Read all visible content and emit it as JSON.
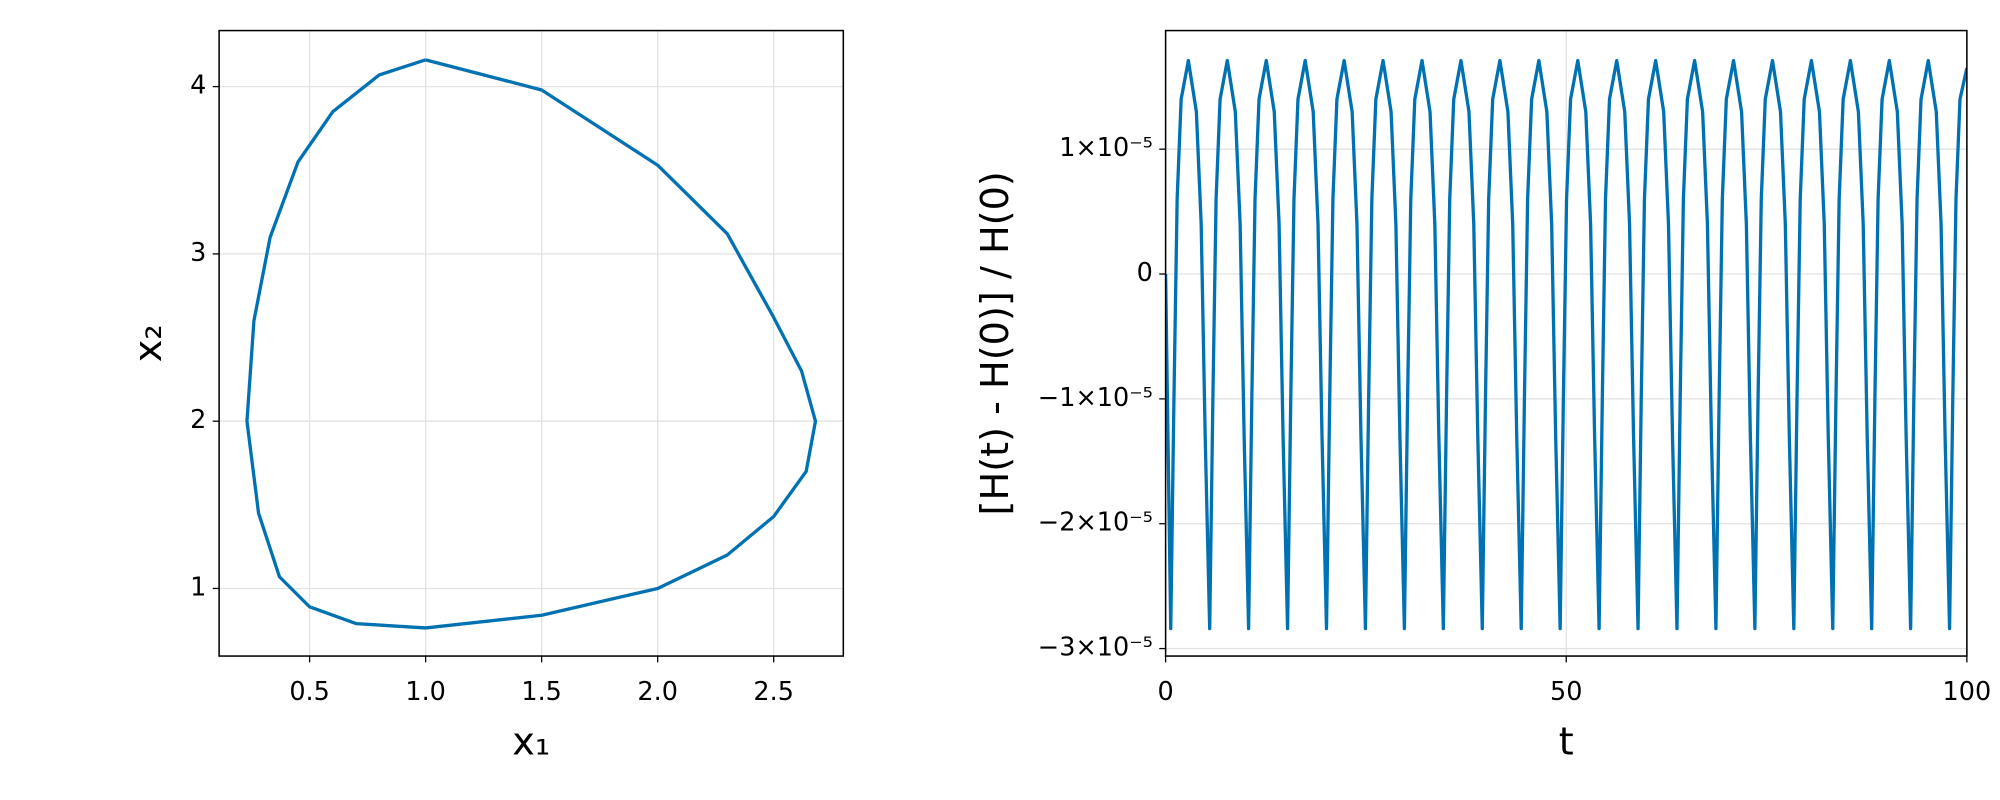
{
  "chart_data": [
    {
      "type": "line",
      "xlabel": "x₁",
      "ylabel": "x₂",
      "color": "#0072b2",
      "grid": true,
      "xlim": [
        0.11,
        2.8
      ],
      "ylim": [
        0.596,
        4.335
      ],
      "xticks": [
        0.5,
        {
          "value": 1,
          "label": "1.0"
        },
        1.5,
        {
          "value": 2,
          "label": "2.0"
        },
        2.5
      ],
      "yticks": [
        1,
        2,
        3,
        4
      ],
      "x": [
        1.0,
        1.5,
        2.0,
        2.3,
        2.5,
        2.62,
        2.68,
        2.64,
        2.5,
        2.3,
        2.0,
        1.5,
        1.0,
        0.7,
        0.5,
        0.37,
        0.28,
        0.23,
        0.26,
        0.33,
        0.45,
        0.6,
        0.8,
        1.0
      ],
      "values": [
        4.16,
        3.98,
        3.53,
        3.12,
        2.62,
        2.3,
        2.0,
        1.7,
        1.43,
        1.2,
        1.0,
        0.84,
        0.764,
        0.79,
        0.89,
        1.07,
        1.45,
        2.0,
        2.6,
        3.1,
        3.55,
        3.85,
        4.07,
        4.16
      ]
    },
    {
      "type": "line",
      "xlabel": "t",
      "ylabel": "[H(t) - H(0)] / H(0)",
      "color": "#0072b2",
      "grid": true,
      "xlim": [
        0,
        100
      ],
      "ylim": [
        -3.06e-05,
        1.95e-05
      ],
      "xticks": [
        0,
        50,
        100
      ],
      "yticks": [
        {
          "value": 1e-05,
          "label": "1×10⁻⁵"
        },
        0,
        {
          "value": -1e-05,
          "label": "−1×10⁻⁵"
        },
        {
          "value": -2e-05,
          "label": "−2×10⁻⁵"
        },
        {
          "value": -3e-05,
          "label": "−3×10⁻⁵"
        }
      ],
      "x": [
        0,
        0.64,
        1.04,
        1.44,
        1.94,
        2.84,
        3.84,
        4.44,
        4.94,
        5.5,
        5.9,
        6.3,
        6.8,
        7.7,
        8.7,
        9.3,
        9.8,
        10.36,
        10.76,
        11.16,
        11.66,
        12.56,
        13.56,
        14.16,
        14.66,
        15.22,
        15.62,
        16.02,
        16.52,
        17.42,
        18.42,
        19.02,
        19.52,
        20.08,
        20.48,
        20.88,
        21.38,
        22.28,
        23.28,
        23.88,
        24.38,
        24.94,
        25.34,
        25.74,
        26.24,
        27.14,
        28.14,
        28.74,
        29.24,
        29.8,
        30.2,
        30.6,
        31.1,
        32,
        33,
        33.6,
        34.1,
        34.66,
        35.06,
        35.46,
        35.96,
        36.86,
        37.86,
        38.46,
        38.96,
        39.52,
        39.92,
        40.32,
        40.82,
        41.72,
        42.72,
        43.32,
        43.82,
        44.38,
        44.78,
        45.18,
        45.68,
        46.58,
        47.58,
        48.18,
        48.68,
        49.24,
        49.64,
        50.04,
        50.54,
        51.44,
        52.44,
        53.04,
        53.54,
        54.1,
        54.5,
        54.9,
        55.4,
        56.3,
        57.3,
        57.9,
        58.4,
        58.96,
        59.36,
        59.76,
        60.26,
        61.16,
        62.16,
        62.76,
        63.26,
        63.82,
        64.22,
        64.62,
        65.12,
        66.02,
        67.02,
        67.62,
        68.12,
        68.68,
        69.08,
        69.48,
        69.98,
        70.88,
        71.88,
        72.48,
        72.98,
        73.54,
        73.94,
        74.34,
        74.84,
        75.74,
        76.74,
        77.34,
        77.84,
        78.4,
        78.8,
        79.2,
        79.7,
        80.6,
        81.6,
        82.2,
        82.7,
        83.26,
        83.66,
        84.06,
        84.56,
        85.46,
        86.46,
        87.06,
        87.56,
        88.12,
        88.52,
        88.92,
        89.42,
        90.32,
        91.32,
        91.92,
        92.42,
        92.98,
        93.38,
        93.78,
        94.28,
        95.18,
        96.18,
        96.78,
        97.28,
        97.84,
        98.24,
        98.64,
        99.14,
        100
      ],
      "values": [
        0,
        -2.84e-05,
        -1e-05,
        6e-06,
        1.4e-05,
        1.71e-05,
        1.3e-05,
        4e-06,
        -1.3e-05,
        -2.84e-05,
        -1e-05,
        6e-06,
        1.4e-05,
        1.71e-05,
        1.3e-05,
        4e-06,
        -1.3e-05,
        -2.84e-05,
        -1e-05,
        6e-06,
        1.4e-05,
        1.71e-05,
        1.3e-05,
        4e-06,
        -1.3e-05,
        -2.84e-05,
        -1e-05,
        6e-06,
        1.4e-05,
        1.71e-05,
        1.3e-05,
        4e-06,
        -1.3e-05,
        -2.84e-05,
        -1e-05,
        6e-06,
        1.4e-05,
        1.71e-05,
        1.3e-05,
        4e-06,
        -1.3e-05,
        -2.84e-05,
        -1e-05,
        6e-06,
        1.4e-05,
        1.71e-05,
        1.3e-05,
        4e-06,
        -1.3e-05,
        -2.84e-05,
        -1e-05,
        6e-06,
        1.4e-05,
        1.71e-05,
        1.3e-05,
        4e-06,
        -1.3e-05,
        -2.84e-05,
        -1e-05,
        6e-06,
        1.4e-05,
        1.71e-05,
        1.3e-05,
        4e-06,
        -1.3e-05,
        -2.84e-05,
        -1e-05,
        6e-06,
        1.4e-05,
        1.71e-05,
        1.3e-05,
        4e-06,
        -1.3e-05,
        -2.84e-05,
        -1e-05,
        6e-06,
        1.4e-05,
        1.71e-05,
        1.3e-05,
        4e-06,
        -1.3e-05,
        -2.84e-05,
        -1e-05,
        6e-06,
        1.4e-05,
        1.71e-05,
        1.3e-05,
        4e-06,
        -1.3e-05,
        -2.84e-05,
        -1e-05,
        6e-06,
        1.4e-05,
        1.71e-05,
        1.3e-05,
        4e-06,
        -1.3e-05,
        -2.84e-05,
        -1e-05,
        6e-06,
        1.4e-05,
        1.71e-05,
        1.3e-05,
        4e-06,
        -1.3e-05,
        -2.84e-05,
        -1e-05,
        6e-06,
        1.4e-05,
        1.71e-05,
        1.3e-05,
        4e-06,
        -1.3e-05,
        -2.84e-05,
        -1e-05,
        6e-06,
        1.4e-05,
        1.71e-05,
        1.3e-05,
        4e-06,
        -1.3e-05,
        -2.84e-05,
        -1e-05,
        6e-06,
        1.4e-05,
        1.71e-05,
        1.3e-05,
        4e-06,
        -1.3e-05,
        -2.84e-05,
        -1e-05,
        6e-06,
        1.4e-05,
        1.71e-05,
        1.3e-05,
        4e-06,
        -1.3e-05,
        -2.84e-05,
        -1e-05,
        6e-06,
        1.4e-05,
        1.71e-05,
        1.3e-05,
        4e-06,
        -1.3e-05,
        -2.84e-05,
        -1e-05,
        6e-06,
        1.4e-05,
        1.71e-05,
        1.3e-05,
        4e-06,
        -1.3e-05,
        -2.84e-05,
        -1e-05,
        6e-06,
        1.4e-05,
        1.71e-05,
        1.3e-05,
        4e-06,
        -1.3e-05,
        -2.84e-05,
        -1e-05,
        6e-06,
        1.4e-05,
        1.65e-05
      ]
    }
  ]
}
